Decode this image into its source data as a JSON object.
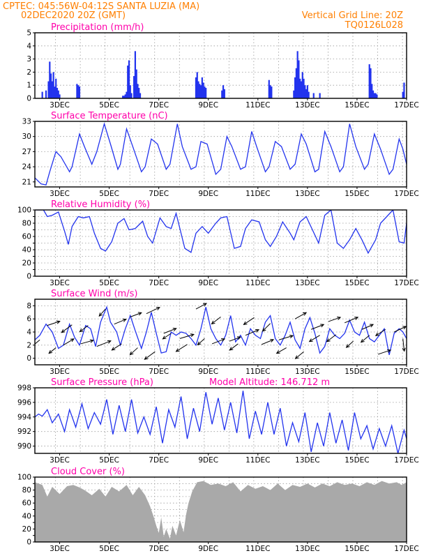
{
  "header": {
    "line1_left": "CPTEC:    045:56W-04:12S   SANTA LUZIA (MA)",
    "line2_left": "02DEC2020 20Z (GMT)",
    "line1_right": "Vertical Grid Line: 20Z",
    "line2_right": "TQ0126L028"
  },
  "colors": {
    "header": "#ff7f00",
    "panel_title": "#ff00aa",
    "series": "#2233ee",
    "cloud": "#a9a9a9",
    "grid": "#9a9a9a"
  },
  "x_axis": {
    "labels": [
      "3DEC",
      "5DEC",
      "7DEC",
      "9DEC",
      "11DEC",
      "13DEC",
      "15DEC",
      "17DEC"
    ],
    "label_days": [
      3.0,
      5.0,
      7.0,
      9.0,
      11.0,
      13.0,
      15.0,
      17.0
    ],
    "grid_days": [
      2.833,
      3.833,
      4.833,
      5.833,
      6.833,
      7.833,
      8.833,
      9.833,
      10.833,
      11.833,
      12.833,
      13.833,
      14.833,
      15.833,
      16.833
    ],
    "start_day": 2.0,
    "end_day": 17.0
  },
  "chart_data": [
    {
      "type": "bar",
      "title": "Precipitation (mm/h)",
      "ylim": [
        0,
        5
      ],
      "yticks": [
        0,
        1,
        2,
        3,
        4,
        5
      ],
      "x": [
        2.3,
        2.45,
        2.55,
        2.6,
        2.65,
        2.7,
        2.75,
        2.8,
        2.85,
        2.9,
        2.95,
        3.0,
        3.7,
        3.75,
        3.8,
        5.55,
        5.6,
        5.65,
        5.7,
        5.75,
        5.8,
        5.85,
        5.9,
        6.0,
        6.05,
        6.1,
        6.15,
        6.2,
        6.25,
        8.5,
        8.55,
        8.6,
        8.65,
        8.7,
        8.75,
        8.8,
        8.85,
        8.9,
        9.55,
        9.6,
        9.65,
        11.45,
        11.5,
        11.55,
        12.45,
        12.5,
        12.55,
        12.6,
        12.65,
        12.7,
        12.75,
        12.8,
        12.85,
        12.9,
        12.95,
        13.0,
        13.05,
        13.25,
        13.5,
        15.5,
        15.55,
        15.6,
        15.65,
        15.7,
        15.75,
        15.8,
        16.85,
        16.9
      ],
      "values": [
        0.5,
        0.6,
        1.3,
        2.8,
        1.9,
        1.3,
        2.0,
        0.9,
        1.5,
        0.8,
        0.6,
        0.3,
        1.1,
        1.0,
        0.9,
        0.2,
        0.2,
        0.3,
        0.5,
        2.5,
        2.9,
        1.0,
        0.4,
        1.7,
        3.6,
        2.2,
        1.1,
        0.8,
        0.4,
        1.6,
        2.0,
        1.3,
        1.1,
        1.0,
        1.6,
        1.2,
        0.9,
        0.8,
        0.6,
        1.0,
        0.7,
        1.4,
        1.0,
        0.9,
        0.6,
        1.6,
        2.3,
        3.6,
        2.9,
        1.5,
        1.3,
        2.0,
        1.5,
        1.0,
        0.7,
        1.0,
        0.5,
        0.4,
        0.4,
        2.6,
        2.3,
        1.1,
        0.6,
        0.4,
        0.4,
        0.3,
        0.5,
        1.2
      ]
    },
    {
      "type": "line",
      "title": "Surface Temperature (nC)",
      "ylim": [
        20,
        33
      ],
      "yticks": [
        21,
        24,
        27,
        30,
        33
      ],
      "series": [
        {
          "x": [
            2.0,
            2.25,
            2.45,
            2.6,
            2.85,
            3.05,
            3.4,
            3.5,
            3.8,
            4.0,
            4.3,
            4.5,
            4.8,
            5.05,
            5.35,
            5.45,
            5.7,
            5.95,
            6.3,
            6.45,
            6.7,
            6.95,
            7.3,
            7.45,
            7.75,
            7.95,
            8.3,
            8.5,
            8.7,
            8.95,
            9.3,
            9.5,
            9.75,
            9.95,
            10.3,
            10.5,
            10.75,
            10.95,
            11.3,
            11.45,
            11.7,
            11.95,
            12.3,
            12.5,
            12.75,
            12.95,
            13.3,
            13.45,
            13.7,
            13.95,
            14.3,
            14.45,
            14.7,
            14.95,
            15.3,
            15.45,
            15.7,
            15.95,
            16.3,
            16.45,
            16.7,
            16.85,
            17.0
          ],
          "values": [
            21.8,
            20.6,
            20.4,
            23.0,
            27.0,
            26.0,
            23.0,
            24.0,
            30.5,
            28.0,
            24.5,
            27.0,
            32.5,
            28.5,
            23.5,
            24.5,
            31.5,
            28.0,
            23.0,
            24.0,
            29.5,
            28.5,
            23.5,
            24.5,
            32.5,
            28.0,
            23.5,
            24.0,
            29.0,
            28.5,
            22.5,
            23.5,
            30.0,
            28.0,
            23.5,
            24.0,
            31.0,
            28.0,
            23.0,
            24.0,
            29.0,
            28.0,
            23.5,
            24.5,
            30.5,
            28.5,
            23.0,
            23.5,
            31.0,
            28.0,
            23.0,
            24.0,
            32.5,
            28.0,
            23.5,
            24.5,
            30.5,
            27.5,
            22.5,
            23.5,
            29.5,
            27.5,
            24.5
          ]
        }
      ]
    },
    {
      "type": "line",
      "title": "Relative Humidity (%)",
      "ylim": [
        0,
        100
      ],
      "yticks": [
        0,
        10,
        20,
        30,
        40,
        50,
        60,
        70,
        80,
        90,
        100
      ],
      "series": [
        {
          "x": [
            2.0,
            2.35,
            2.5,
            2.7,
            2.95,
            3.2,
            3.35,
            3.5,
            3.75,
            3.95,
            4.2,
            4.4,
            4.65,
            4.85,
            5.1,
            5.35,
            5.6,
            5.8,
            6.05,
            6.35,
            6.55,
            6.75,
            7.05,
            7.3,
            7.5,
            7.7,
            8.05,
            8.3,
            8.5,
            8.75,
            9.0,
            9.3,
            9.5,
            9.75,
            10.05,
            10.3,
            10.5,
            10.75,
            11.05,
            11.3,
            11.5,
            11.75,
            12.0,
            12.3,
            12.45,
            12.7,
            12.95,
            13.2,
            13.45,
            13.7,
            13.95,
            14.2,
            14.45,
            14.7,
            14.95,
            15.2,
            15.45,
            15.75,
            15.95,
            16.2,
            16.45,
            16.7,
            16.9,
            17.0
          ],
          "values": [
            100.0,
            100.0,
            90.0,
            92.0,
            97.0,
            68.0,
            48.0,
            75.0,
            90.0,
            88.0,
            90.0,
            65.0,
            42.0,
            38.0,
            52.0,
            80.0,
            87.0,
            70.0,
            72.0,
            83.0,
            60.0,
            50.0,
            88.0,
            75.0,
            72.0,
            95.0,
            42.0,
            36.0,
            65.0,
            75.0,
            65.0,
            80.0,
            88.0,
            90.0,
            42.0,
            45.0,
            72.0,
            85.0,
            82.0,
            55.0,
            45.0,
            60.0,
            82.0,
            65.0,
            55.0,
            82.0,
            90.0,
            70.0,
            50.0,
            92.0,
            100.0,
            50.0,
            42.0,
            55.0,
            72.0,
            55.0,
            35.0,
            55.0,
            80.0,
            90.0,
            100.0,
            52.0,
            50.0,
            80.0
          ]
        }
      ]
    },
    {
      "type": "line",
      "title": "Surface Wind (m/s)",
      "ylim": [
        -1,
        9
      ],
      "yticks": [
        0,
        2,
        4,
        6,
        8
      ],
      "series": [
        {
          "x": [
            2.0,
            2.2,
            2.45,
            2.7,
            2.95,
            3.15,
            3.4,
            3.6,
            3.8,
            4.05,
            4.25,
            4.45,
            4.65,
            4.9,
            5.05,
            5.3,
            5.45,
            5.65,
            5.85,
            6.05,
            6.3,
            6.5,
            6.7,
            6.9,
            7.1,
            7.3,
            7.5,
            7.7,
            7.9,
            8.1,
            8.3,
            8.5,
            8.7,
            8.9,
            9.1,
            9.3,
            9.5,
            9.7,
            9.9,
            10.1,
            10.3,
            10.5,
            10.7,
            10.9,
            11.1,
            11.3,
            11.5,
            11.7,
            11.9,
            12.1,
            12.3,
            12.5,
            12.7,
            12.9,
            13.1,
            13.3,
            13.5,
            13.7,
            13.9,
            14.1,
            14.3,
            14.5,
            14.7,
            14.9,
            15.1,
            15.3,
            15.5,
            15.7,
            15.9,
            16.1,
            16.3,
            16.5,
            16.7,
            16.85,
            17.0
          ],
          "values": [
            2.8,
            3.5,
            5.2,
            4.0,
            1.5,
            2.0,
            5.2,
            3.2,
            2.0,
            5.0,
            4.5,
            1.8,
            5.5,
            7.8,
            5.5,
            4.0,
            2.0,
            4.5,
            6.5,
            4.2,
            1.5,
            4.0,
            7.0,
            3.8,
            0.8,
            1.0,
            4.0,
            3.5,
            4.0,
            3.8,
            3.0,
            2.0,
            4.5,
            7.8,
            4.5,
            3.0,
            2.0,
            3.5,
            6.5,
            2.5,
            3.5,
            2.0,
            4.5,
            3.5,
            3.0,
            5.5,
            6.5,
            3.0,
            2.0,
            3.5,
            5.5,
            2.8,
            1.5,
            4.5,
            6.2,
            3.8,
            0.8,
            1.8,
            4.5,
            3.5,
            3.0,
            3.8,
            5.8,
            4.0,
            3.5,
            5.5,
            3.0,
            2.5,
            3.5,
            4.5,
            0.5,
            3.8,
            4.5,
            4.0,
            3.0
          ]
        }
      ],
      "wind_arrows": {
        "x": [
          2.2,
          2.5,
          2.85,
          3.15,
          3.5,
          3.85,
          4.15,
          4.5,
          4.85,
          5.2,
          5.5,
          5.85,
          6.15,
          6.5,
          6.85,
          7.2,
          7.5,
          7.85,
          8.15,
          8.5,
          8.85,
          9.15,
          9.5,
          9.85,
          10.2,
          10.5,
          10.85,
          11.15,
          11.5,
          11.85,
          12.15,
          12.5,
          12.85,
          13.15,
          13.5,
          13.85,
          14.15,
          14.5,
          14.85,
          15.2,
          15.5,
          15.85,
          16.15,
          16.5,
          16.85
        ],
        "y": [
          2.8,
          5.0,
          1.6,
          2.0,
          5.1,
          2.2,
          5.0,
          1.8,
          7.5,
          5.2,
          2.2,
          6.3,
          1.6,
          6.8,
          1.0,
          3.8,
          3.8,
          3.0,
          2.1,
          7.5,
          3.0,
          2.2,
          6.3,
          2.6,
          2.2,
          3.5,
          6.2,
          2.1,
          5.3,
          2.8,
          1.6,
          6.0,
          1.0,
          4.4,
          3.5,
          5.6,
          3.6,
          5.4,
          2.6,
          4.4,
          3.5,
          0.6,
          4.4,
          4.0,
          3.0
        ],
        "u": [
          -1.2,
          1.8,
          -1.0,
          1.5,
          -1.5,
          1.8,
          -1.2,
          2.0,
          -0.9,
          1.7,
          -1.4,
          1.6,
          -1.1,
          1.9,
          -1.5,
          1.8,
          -1.2,
          2.0,
          -1.6,
          1.5,
          -1.0,
          1.8,
          -1.3,
          1.6,
          -1.2,
          1.9,
          -1.5,
          1.7,
          -1.1,
          2.0,
          -1.4,
          1.6,
          -1.2,
          1.8,
          -1.5,
          1.7,
          -1.3,
          1.9,
          -1.0,
          1.6,
          -1.2,
          1.8,
          -1.4,
          1.7,
          0.2
        ],
        "v": [
          -1.0,
          0.6,
          -0.8,
          0.9,
          -1.1,
          0.5,
          -0.9,
          0.8,
          -1.0,
          0.7,
          -0.9,
          0.6,
          -1.0,
          0.9,
          -1.1,
          0.7,
          -0.8,
          0.6,
          -1.0,
          0.8,
          -0.9,
          0.7,
          -1.0,
          0.6,
          -0.9,
          0.8,
          -1.0,
          0.7,
          -1.1,
          0.6,
          -0.8,
          0.9,
          -1.0,
          0.7,
          -0.9,
          0.6,
          -1.0,
          0.8,
          -0.9,
          0.7,
          -1.0,
          0.6,
          -0.9,
          0.8,
          -1.8
        ]
      }
    },
    {
      "type": "line",
      "title": "Surface Pressure (hPa)",
      "annotation": "Model Altitude: 146.712 m",
      "ylim": [
        989,
        998
      ],
      "yticks": [
        990,
        992,
        994,
        996,
        998
      ],
      "series": [
        {
          "x": [
            2.0,
            2.15,
            2.3,
            2.5,
            2.7,
            2.95,
            3.2,
            3.4,
            3.65,
            3.9,
            4.15,
            4.4,
            4.65,
            4.9,
            5.15,
            5.4,
            5.65,
            5.9,
            6.15,
            6.4,
            6.65,
            6.9,
            7.15,
            7.4,
            7.65,
            7.9,
            8.15,
            8.4,
            8.65,
            8.9,
            9.15,
            9.4,
            9.65,
            9.9,
            10.15,
            10.4,
            10.65,
            10.9,
            11.15,
            11.4,
            11.65,
            11.9,
            12.15,
            12.4,
            12.65,
            12.9,
            13.15,
            13.4,
            13.65,
            13.9,
            14.15,
            14.4,
            14.65,
            14.9,
            15.15,
            15.4,
            15.65,
            15.9,
            16.15,
            16.4,
            16.65,
            16.9,
            17.0
          ],
          "values": [
            994.0,
            994.4,
            994.1,
            995.0,
            993.2,
            994.4,
            992.0,
            995.0,
            992.6,
            995.8,
            992.4,
            994.6,
            993.0,
            996.4,
            991.6,
            995.6,
            992.0,
            996.4,
            991.8,
            994.0,
            991.6,
            995.4,
            990.4,
            995.0,
            992.6,
            996.8,
            991.0,
            995.2,
            992.0,
            997.4,
            993.0,
            996.6,
            992.2,
            996.0,
            991.8,
            997.6,
            991.0,
            994.8,
            991.6,
            996.0,
            991.6,
            995.2,
            990.0,
            993.2,
            990.6,
            994.6,
            989.2,
            993.2,
            990.0,
            994.6,
            990.4,
            993.6,
            989.4,
            994.6,
            991.0,
            992.8,
            989.6,
            992.4,
            990.0,
            992.8,
            989.0,
            992.2,
            991.0
          ]
        }
      ]
    },
    {
      "type": "area",
      "title": "Cloud Cover (%)",
      "ylim": [
        0,
        100
      ],
      "yticks": [
        0,
        10,
        20,
        30,
        40,
        50,
        60,
        70,
        80,
        90,
        100
      ],
      "x": [
        2.0,
        2.3,
        2.5,
        2.7,
        3.0,
        3.3,
        3.55,
        3.8,
        4.0,
        4.3,
        4.6,
        4.85,
        5.1,
        5.4,
        5.7,
        5.95,
        6.2,
        6.45,
        6.65,
        6.8,
        6.9,
        7.0,
        7.1,
        7.2,
        7.3,
        7.45,
        7.55,
        7.7,
        7.85,
        8.0,
        8.1,
        8.2,
        8.35,
        8.55,
        8.8,
        9.1,
        9.4,
        9.7,
        10.0,
        10.3,
        10.6,
        10.9,
        11.2,
        11.5,
        11.8,
        12.1,
        12.4,
        12.7,
        13.0,
        13.3,
        13.6,
        13.9,
        14.2,
        14.5,
        14.8,
        15.1,
        15.4,
        15.7,
        16.0,
        16.3,
        16.6,
        16.8,
        17.0
      ],
      "values": [
        92.0,
        88.0,
        70.0,
        85.0,
        74.0,
        86.0,
        88.0,
        84.0,
        80.0,
        72.0,
        82.0,
        70.0,
        85.0,
        78.0,
        88.0,
        72.0,
        85.0,
        72.0,
        55.0,
        38.0,
        25.0,
        14.0,
        38.0,
        8.0,
        20.0,
        5.0,
        25.0,
        10.0,
        34.0,
        15.0,
        42.0,
        60.0,
        78.0,
        92.0,
        94.0,
        88.0,
        90.0,
        86.0,
        92.0,
        78.0,
        88.0,
        82.0,
        86.0,
        80.0,
        90.0,
        80.0,
        88.0,
        85.0,
        90.0,
        84.0,
        90.0,
        86.0,
        92.0,
        88.0,
        90.0,
        86.0,
        92.0,
        88.0,
        94.0,
        90.0,
        92.0,
        88.0,
        92.0
      ]
    }
  ]
}
